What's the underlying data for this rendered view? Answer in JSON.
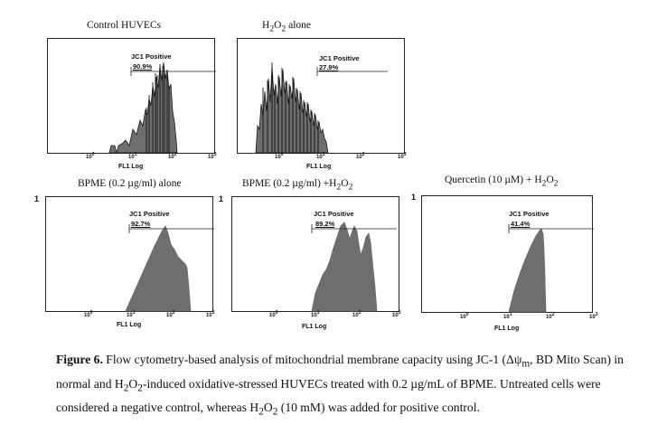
{
  "panels": [
    {
      "id": "control",
      "title": "Control HUVECs",
      "gate_label": "JC1 Positive",
      "gate_percent": "90.9%",
      "xlabel": "FL1 Log",
      "y_marker": "",
      "ticks": [
        "10",
        "10",
        "10",
        "10"
      ],
      "tick_exps": [
        "0",
        "1",
        "2",
        "3"
      ]
    },
    {
      "id": "h2o2",
      "title_parts": [
        "H",
        "2",
        "O",
        "2",
        " alone"
      ],
      "gate_label": "JC1 Positive",
      "gate_percent": "27.9%",
      "xlabel": "FL1 Log",
      "y_marker": "",
      "ticks": [
        "10",
        "10",
        "10",
        "10"
      ],
      "tick_exps": [
        "0",
        "1",
        "2",
        "3"
      ]
    },
    {
      "id": "bpme",
      "title": "BPME (0.2 µg/ml) alone",
      "gate_label": "JC1 Positive",
      "gate_percent": "92.7%",
      "xlabel": "FL1 Log",
      "y_marker": "1",
      "ticks": [
        "10",
        "10",
        "10",
        "10"
      ],
      "tick_exps": [
        "0",
        "1",
        "2",
        "3"
      ]
    },
    {
      "id": "bpme_h2o2",
      "title_parts": [
        "BPME (0.2 µg/ml) +H",
        "2",
        "O",
        "2",
        ""
      ],
      "gate_label": "JC1 Positive",
      "gate_percent": "89.2%",
      "xlabel": "FL1 Log",
      "y_marker": "1",
      "ticks": [
        "10",
        "10",
        "10",
        "10"
      ],
      "tick_exps": [
        "0",
        "1",
        "2",
        "3"
      ]
    },
    {
      "id": "quercetin",
      "title_parts": [
        "Quercetin (10 µM) + H",
        "2",
        "O",
        "2",
        ""
      ],
      "gate_label": "JC1 Positive",
      "gate_percent": "41.4%",
      "xlabel": "FL1 Log",
      "y_marker": "1",
      "ticks": [
        "10",
        "10",
        "10",
        "10"
      ],
      "tick_exps": [
        "0",
        "1",
        "2",
        "3"
      ]
    }
  ],
  "caption": {
    "label": "Figure 6.",
    "text_1": " Flow cytometry-based analysis of mitochondrial membrane capacity using JC-1 (Δψ",
    "sub_m": "m",
    "text_2": ", BD Mito Scan) in normal and H",
    "sub_2a": "2",
    "text_3": "O",
    "sub_2b": "2",
    "text_4": "-induced oxidative-stressed HUVECs treated with 0.2 µg/mL of BPME. Untreated cells were considered a negative control, whereas H",
    "sub_2c": "2",
    "text_5": "O",
    "sub_2d": "2",
    "text_6": " (10 mM) was added for positive control."
  },
  "colors": {
    "fill": "#6e6e6e",
    "edge": "#1a1a1a"
  }
}
